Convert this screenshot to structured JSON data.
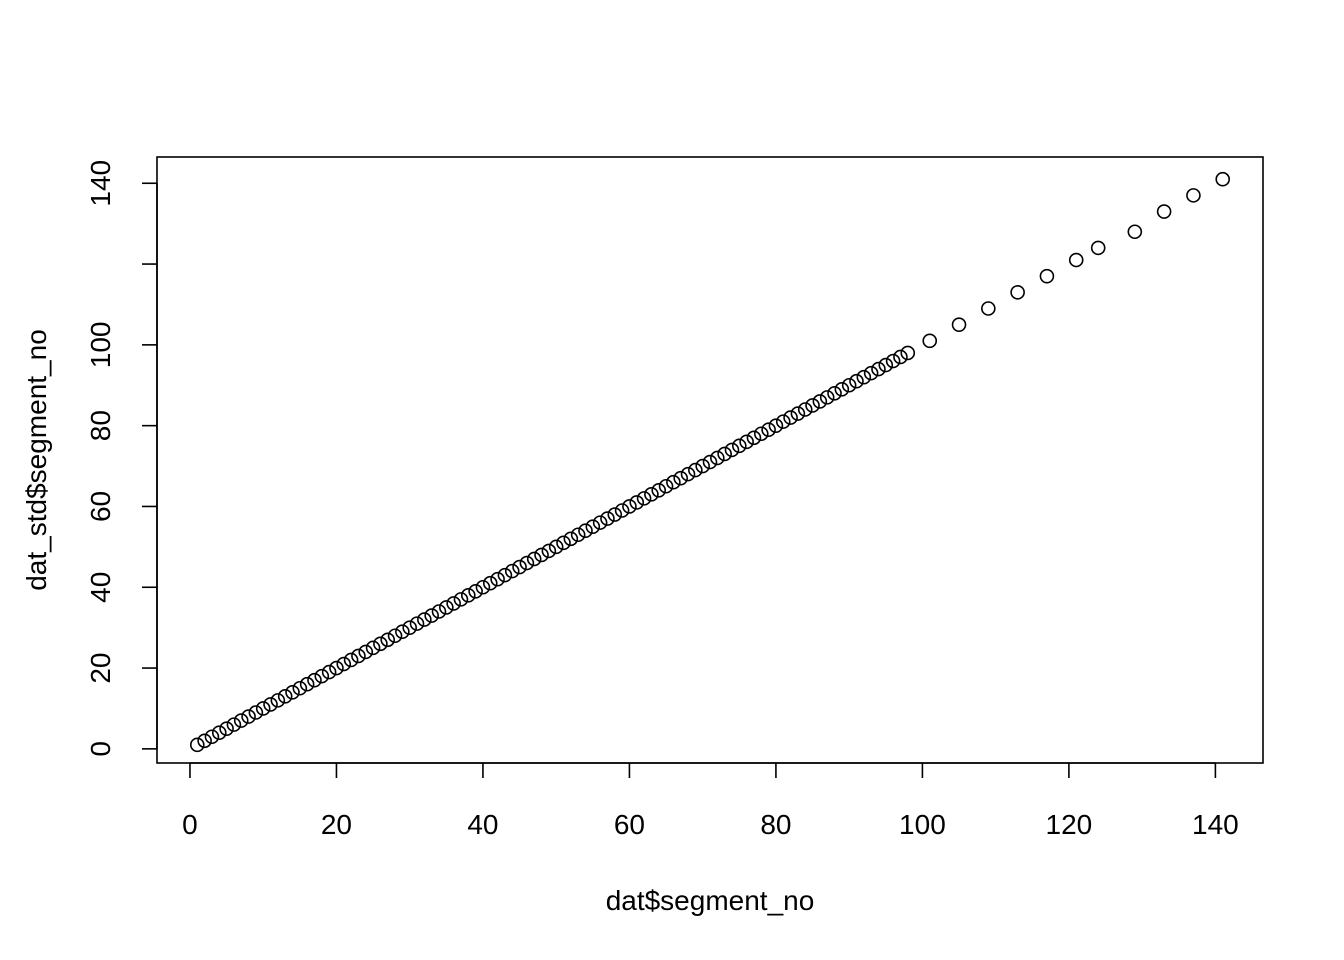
{
  "chart_data": {
    "type": "scatter",
    "title": "",
    "xlabel": "dat$segment_no",
    "ylabel": "dat_std$segment_no",
    "xlim": [
      -4.5,
      146.5
    ],
    "ylim": [
      -3.5,
      146.5
    ],
    "x_ticks": [
      0,
      20,
      40,
      60,
      80,
      100,
      120,
      140
    ],
    "y_ticks": [
      0,
      20,
      40,
      60,
      80,
      100,
      120,
      140
    ],
    "y_tick_labels": [
      "0",
      "20",
      "40",
      "60",
      "80",
      "100",
      "",
      "140"
    ],
    "x_tick_labels": [
      "0",
      "20",
      "40",
      "60",
      "80",
      "100",
      "120",
      "140"
    ],
    "grid": false,
    "marker": "open-circle",
    "x": [
      1,
      2,
      3,
      4,
      5,
      6,
      7,
      8,
      9,
      10,
      11,
      12,
      13,
      14,
      15,
      16,
      17,
      18,
      19,
      20,
      21,
      22,
      23,
      24,
      25,
      26,
      27,
      28,
      29,
      30,
      31,
      32,
      33,
      34,
      35,
      36,
      37,
      38,
      39,
      40,
      41,
      42,
      43,
      44,
      45,
      46,
      47,
      48,
      49,
      50,
      51,
      52,
      53,
      54,
      55,
      56,
      57,
      58,
      59,
      60,
      61,
      62,
      63,
      64,
      65,
      66,
      67,
      68,
      69,
      70,
      71,
      72,
      73,
      74,
      75,
      76,
      77,
      78,
      79,
      80,
      81,
      82,
      83,
      84,
      85,
      86,
      87,
      88,
      89,
      90,
      91,
      92,
      93,
      94,
      95,
      96,
      97,
      98,
      101,
      105,
      109,
      113,
      117,
      121,
      124,
      129,
      133,
      137,
      141
    ],
    "y": [
      1,
      2,
      3,
      4,
      5,
      6,
      7,
      8,
      9,
      10,
      11,
      12,
      13,
      14,
      15,
      16,
      17,
      18,
      19,
      20,
      21,
      22,
      23,
      24,
      25,
      26,
      27,
      28,
      29,
      30,
      31,
      32,
      33,
      34,
      35,
      36,
      37,
      38,
      39,
      40,
      41,
      42,
      43,
      44,
      45,
      46,
      47,
      48,
      49,
      50,
      51,
      52,
      53,
      54,
      55,
      56,
      57,
      58,
      59,
      60,
      61,
      62,
      63,
      64,
      65,
      66,
      67,
      68,
      69,
      70,
      71,
      72,
      73,
      74,
      75,
      76,
      77,
      78,
      79,
      80,
      81,
      82,
      83,
      84,
      85,
      86,
      87,
      88,
      89,
      90,
      91,
      92,
      93,
      94,
      95,
      96,
      97,
      98,
      101,
      105,
      109,
      113,
      117,
      121,
      124,
      128,
      133,
      137,
      141
    ]
  }
}
